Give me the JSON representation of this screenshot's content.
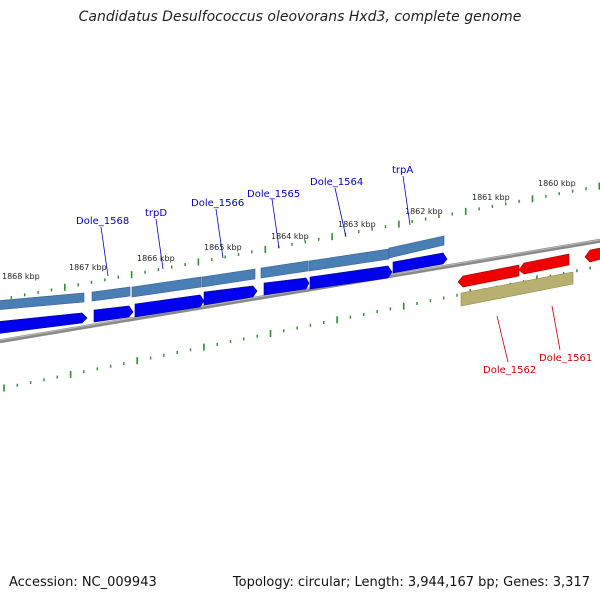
{
  "title": "Candidatus Desulfococcus oleovorans Hxd3, complete genome",
  "accession": "Accession: NC_009943",
  "topology": "Topology: circular; Length: 3,944,167 bp; Genes: 3,317",
  "colors": {
    "backbone": "#8a8a8a",
    "tick": "#2e8b2e",
    "forward_gene": "#0000ee",
    "forward_feature": "#4a7fb5",
    "reverse_gene": "#ee0000",
    "reverse_feature": "#b8b070",
    "forward_label": "#0000bb",
    "reverse_label": "#cc0000"
  },
  "kbp_labels": [
    "1868 kbp",
    "1867 kbp",
    "1866 kbp",
    "1865 kbp",
    "1864 kbp",
    "1863 kbp",
    "1862 kbp",
    "1861 kbp",
    "1860 kbp"
  ],
  "gene_labels": {
    "forward": [
      "Dole_1568",
      "trpD",
      "Dole_1566",
      "Dole_1565",
      "Dole_1564",
      "trpA"
    ],
    "reverse": [
      "Dole_1562",
      "Dole_1561"
    ]
  }
}
